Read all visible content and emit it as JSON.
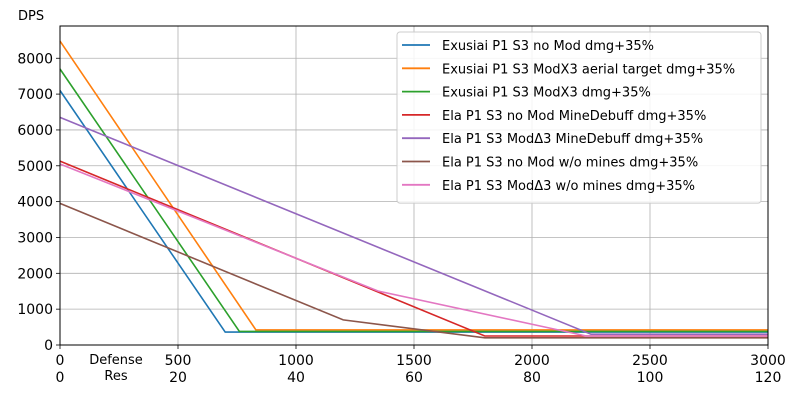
{
  "chart_data": {
    "type": "line",
    "ylabel": "DPS",
    "xlabel": "Defense",
    "xlabel2": "Res",
    "xlim": [
      0,
      3000
    ],
    "ylim": [
      0,
      8900
    ],
    "x_ticks": [
      0,
      500,
      1000,
      1500,
      2000,
      2500,
      3000
    ],
    "x_ticks2": [
      0,
      20,
      40,
      60,
      80,
      100,
      120
    ],
    "y_ticks": [
      0,
      1000,
      2000,
      3000,
      4000,
      5000,
      6000,
      7000,
      8000
    ],
    "grid": true,
    "legend_position": "top-right",
    "series": [
      {
        "name": "Exusiai P1 S3 no Mod dmg+35%",
        "color": "#1f77b4",
        "points": [
          [
            0,
            7100
          ],
          [
            700,
            360
          ],
          [
            3000,
            360
          ]
        ]
      },
      {
        "name": "Exusiai P1 S3 ModX3 aerial target dmg+35%",
        "color": "#ff7f0e",
        "points": [
          [
            0,
            8480
          ],
          [
            830,
            420
          ],
          [
            3000,
            420
          ]
        ]
      },
      {
        "name": "Exusiai P1 S3 ModX3 dmg+35%",
        "color": "#2ca02c",
        "points": [
          [
            0,
            7700
          ],
          [
            760,
            380
          ],
          [
            3000,
            380
          ]
        ]
      },
      {
        "name": "Ela P1 S3 no Mod MineDebuff dmg+35%",
        "color": "#d62728",
        "points": [
          [
            0,
            5130
          ],
          [
            1800,
            250
          ],
          [
            3000,
            250
          ]
        ]
      },
      {
        "name": "Ela P1 S3 ModΔ3 MineDebuff dmg+35%",
        "color": "#9467bd",
        "points": [
          [
            0,
            6350
          ],
          [
            2250,
            300
          ],
          [
            3000,
            300
          ]
        ]
      },
      {
        "name": "Ela P1 S3 no Mod w/o mines dmg+35%",
        "color": "#8c564b",
        "points": [
          [
            0,
            3950
          ],
          [
            1200,
            700
          ],
          [
            1800,
            200
          ],
          [
            3000,
            200
          ]
        ]
      },
      {
        "name": "Ela P1 S3 ModΔ3 w/o mines dmg+35%",
        "color": "#e377c2",
        "points": [
          [
            0,
            5050
          ],
          [
            1350,
            1500
          ],
          [
            2230,
            250
          ],
          [
            3000,
            250
          ]
        ]
      }
    ]
  }
}
